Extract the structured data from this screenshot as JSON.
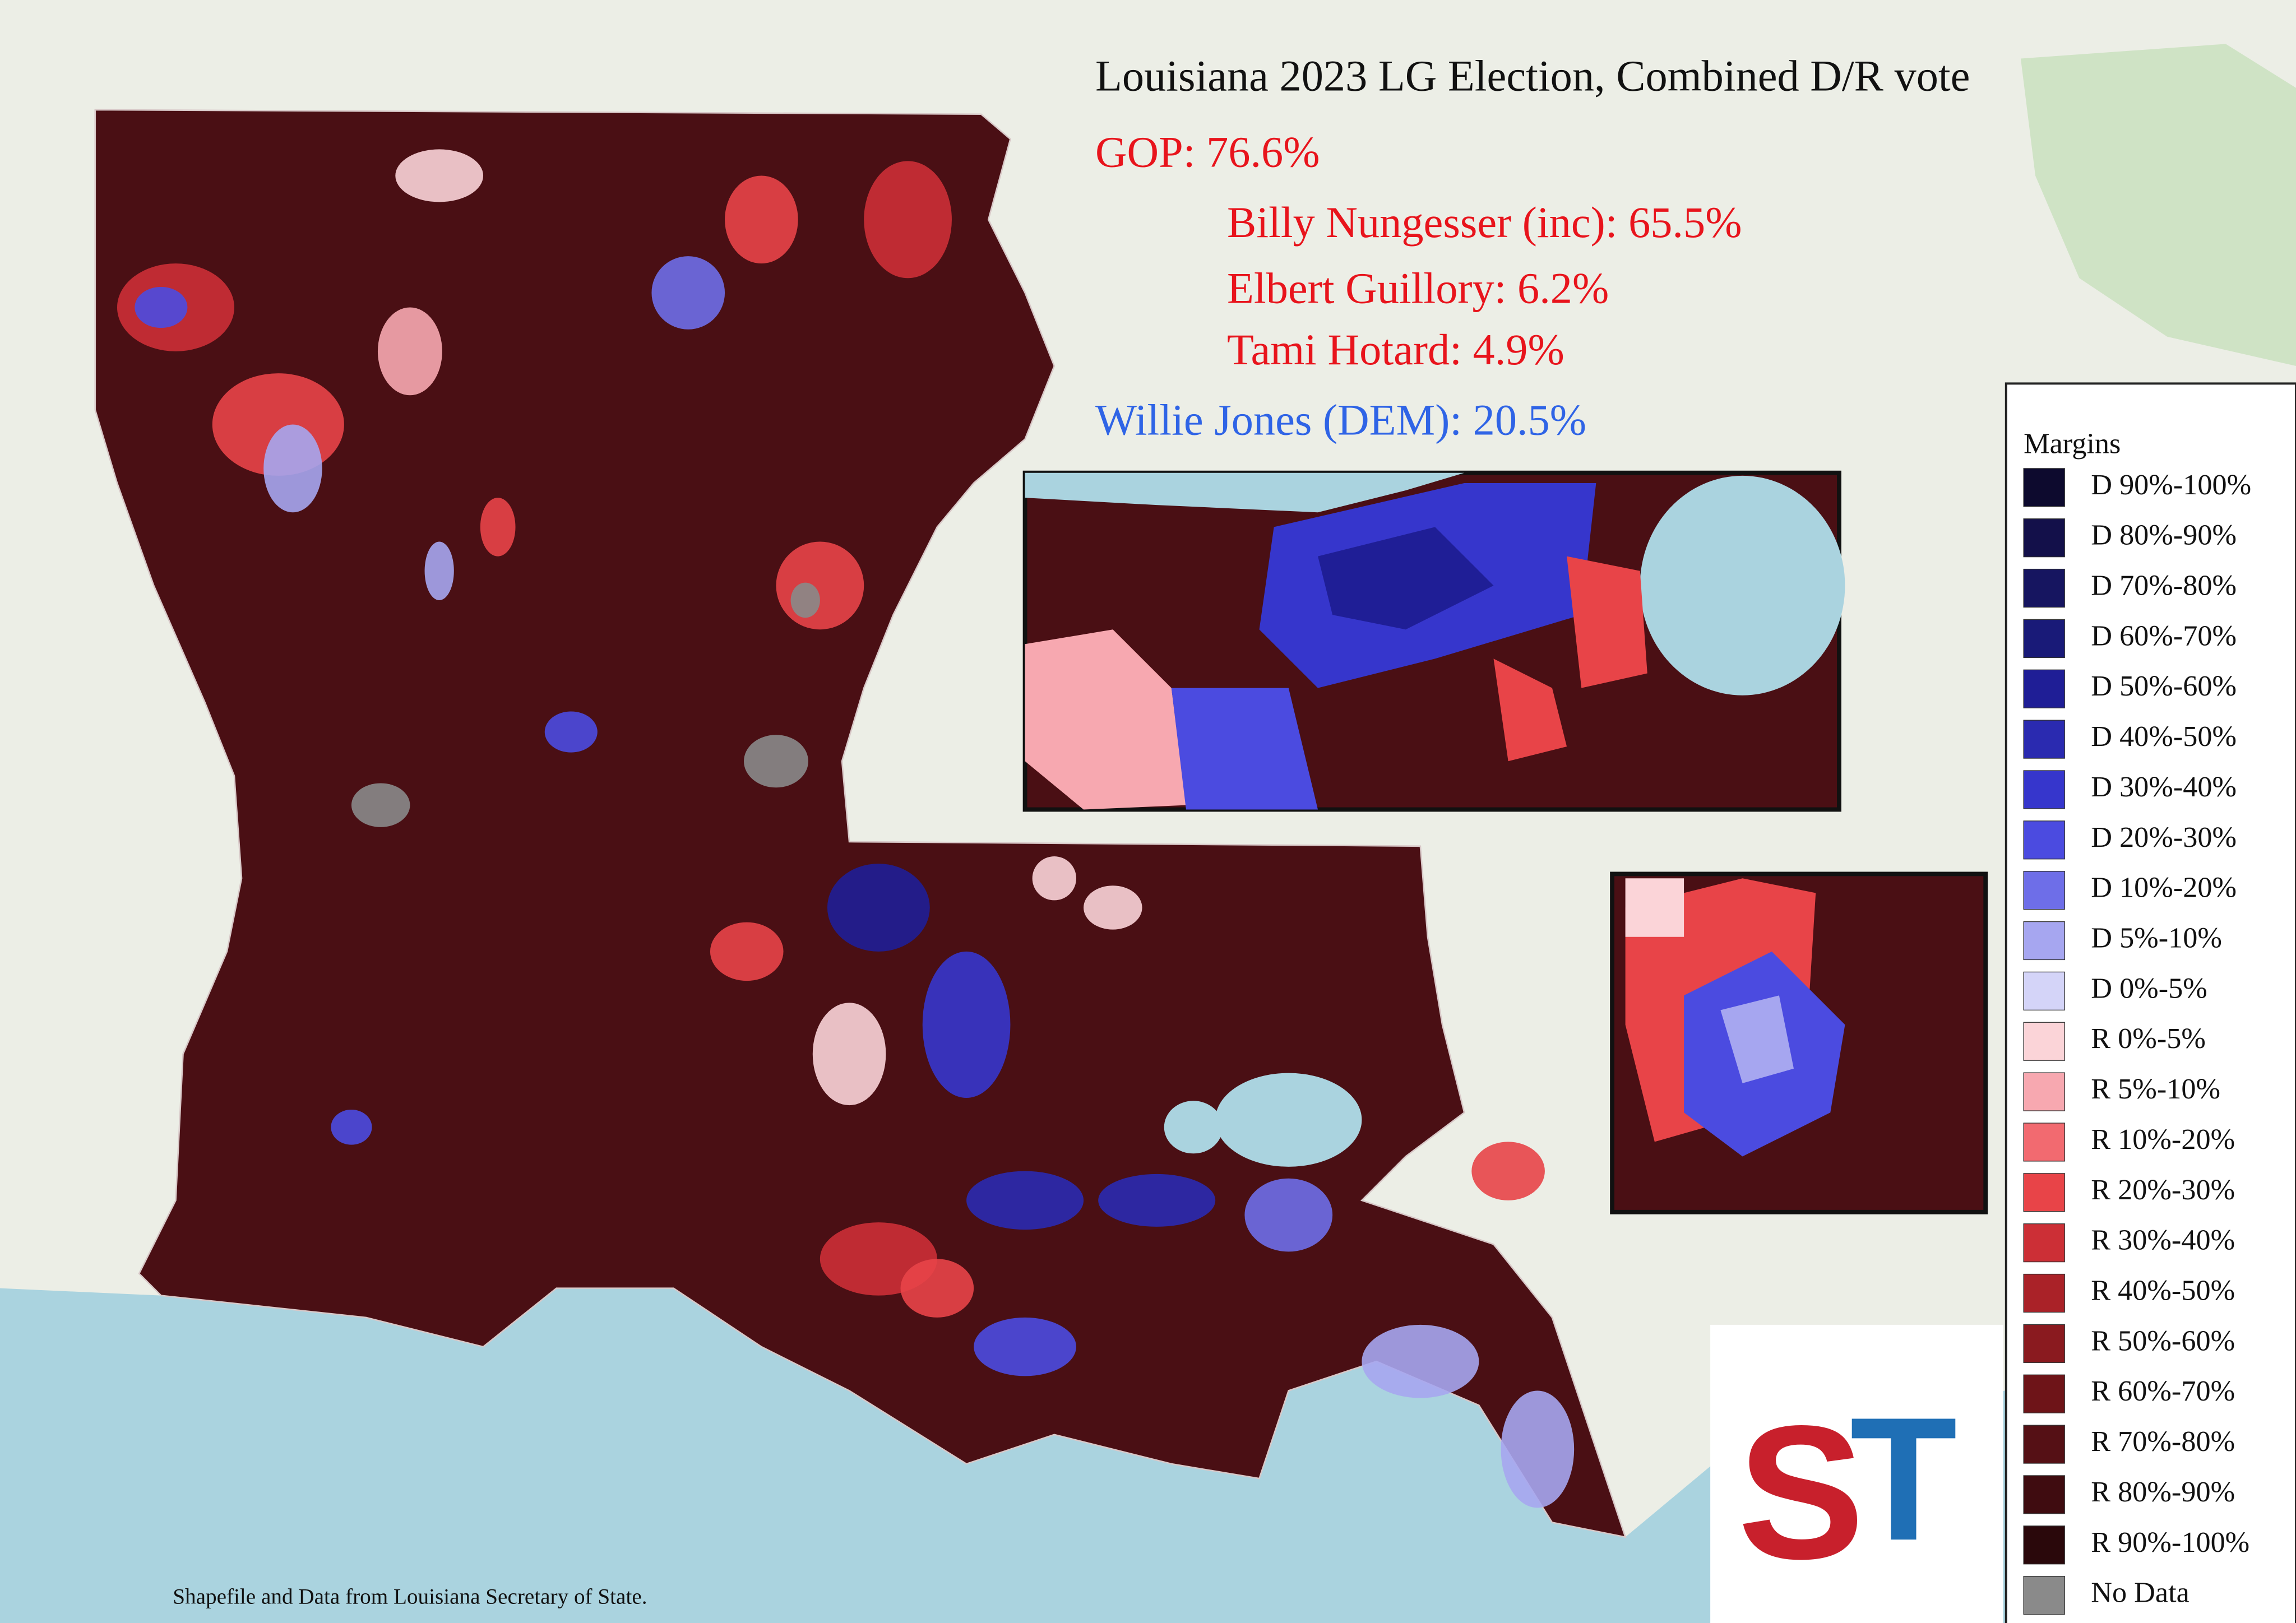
{
  "title": "Louisiana 2023 LG Election, Combined D/R vote",
  "results": [
    {
      "text": "GOP: 76.6%",
      "color": "#e8141c",
      "indent": false
    },
    {
      "text": "Billy Nungesser (inc): 65.5%",
      "color": "#e8141c",
      "indent": true
    },
    {
      "text": "Elbert Guillory: 6.2%",
      "color": "#e8141c",
      "indent": true
    },
    {
      "text": "Tami Hotard: 4.9%",
      "color": "#e8141c",
      "indent": true
    },
    {
      "text": "Willie Jones (DEM): 20.5%",
      "color": "#2f64e6",
      "indent": false
    }
  ],
  "legend": {
    "title": "Margins",
    "items": [
      {
        "label": "D 90%-100%",
        "color": "#0d0a2e"
      },
      {
        "label": "D 80%-90%",
        "color": "#13104a"
      },
      {
        "label": "D 70%-80%",
        "color": "#161560"
      },
      {
        "label": "D 60%-70%",
        "color": "#191a78"
      },
      {
        "label": "D 50%-60%",
        "color": "#1f1e96"
      },
      {
        "label": "D 40%-50%",
        "color": "#2a2ab0"
      },
      {
        "label": "D 30%-40%",
        "color": "#3636cc"
      },
      {
        "label": "D 20%-30%",
        "color": "#4b4be0"
      },
      {
        "label": "D 10%-20%",
        "color": "#6e6ee8"
      },
      {
        "label": "D 5%-10%",
        "color": "#a6a6f0"
      },
      {
        "label": "D 0%-5%",
        "color": "#d4d4f8"
      },
      {
        "label": "R 0%-5%",
        "color": "#fbd4d8"
      },
      {
        "label": "R 5%-10%",
        "color": "#f7a8b0"
      },
      {
        "label": "R 10%-20%",
        "color": "#f26a70"
      },
      {
        "label": "R 20%-30%",
        "color": "#e84448"
      },
      {
        "label": "R 30%-40%",
        "color": "#cc2f36"
      },
      {
        "label": "R 40%-50%",
        "color": "#aa2228"
      },
      {
        "label": "R 50%-60%",
        "color": "#8a1a1f"
      },
      {
        "label": "R 60%-70%",
        "color": "#6e1418"
      },
      {
        "label": "R 70%-80%",
        "color": "#551015"
      },
      {
        "label": "R 80%-90%",
        "color": "#3f0c10"
      },
      {
        "label": "R 90%-100%",
        "color": "#2a080b"
      },
      {
        "label": "No Data",
        "color": "#8a8a8a"
      }
    ]
  },
  "logo": {
    "left": "S",
    "right": "T"
  },
  "source": "Shapefile and Data from Louisiana Secretary of State."
}
